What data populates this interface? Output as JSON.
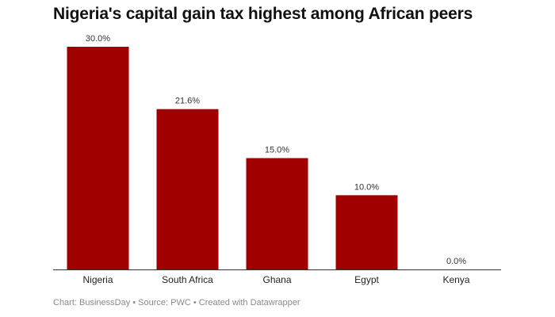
{
  "chart_data": {
    "type": "bar",
    "title": "Nigeria's capital gain tax highest among African peers",
    "categories": [
      "Nigeria",
      "South Africa",
      "Ghana",
      "Egypt",
      "Kenya"
    ],
    "values": [
      30.0,
      21.6,
      15.0,
      10.0,
      0.0
    ],
    "value_labels": [
      "30.0%",
      "21.6%",
      "15.0%",
      "10.0%",
      "0.0%"
    ],
    "xlabel": "",
    "ylabel": "",
    "ylim": [
      0,
      30
    ],
    "bar_color": "#a00000",
    "grid": false,
    "footer": "Chart: BusinessDay • Source: PWC • Created with Datawrapper"
  }
}
